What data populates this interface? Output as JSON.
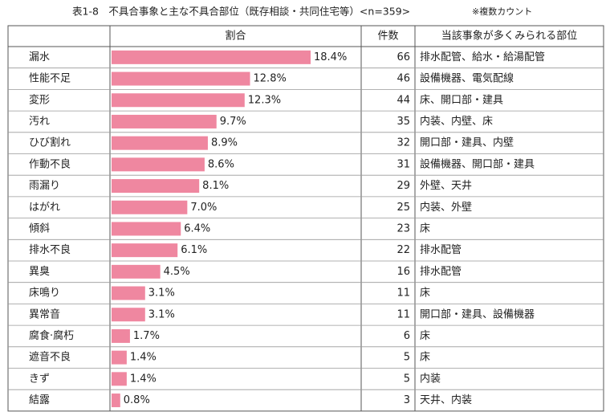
{
  "chart_data": {
    "type": "bar",
    "orientation": "horizontal",
    "title": "表1-8　不具合事象と主な不具合部位（既存相談・共同住宅等）<n=359>",
    "note": "※複数カウント",
    "headers": [
      "割合",
      "件数",
      "当該事象が多くみられる部位"
    ],
    "color": "#ef87a0",
    "categories": [
      "漏水",
      "性能不足",
      "変形",
      "汚れ",
      "ひび割れ",
      "作動不良",
      "雨漏り",
      "はがれ",
      "傾斜",
      "排水不良",
      "異臭",
      "床鳴り",
      "異常音",
      "腐食·腐朽",
      "遮音不良",
      "きず",
      "結露"
    ],
    "values": [
      18.4,
      12.8,
      12.3,
      9.7,
      8.9,
      8.6,
      8.1,
      7.0,
      6.4,
      6.1,
      4.5,
      3.1,
      3.1,
      1.7,
      1.4,
      1.4,
      0.8
    ],
    "value_labels": [
      "18.4%",
      "12.8%",
      "12.3%",
      "9.7%",
      "8.9%",
      "8.6%",
      "8.1%",
      "7.0%",
      "6.4%",
      "6.1%",
      "4.5%",
      "3.1%",
      "3.1%",
      "1.7%",
      "1.4%",
      "1.4%",
      "0.8%"
    ],
    "counts": [
      66,
      46,
      44,
      35,
      32,
      31,
      29,
      25,
      23,
      22,
      16,
      11,
      11,
      6,
      5,
      5,
      3
    ],
    "parts": [
      "排水配管、給水・給湯配管",
      "設備機器、電気配線",
      "床、開口部・建具",
      "内装、内壁、床",
      "開口部・建具、内壁",
      "設備機器、開口部・建具",
      "外壁、天井",
      "内装、外壁",
      "床",
      "排水配管",
      "排水配管",
      "床",
      "開口部・建具、設備機器",
      "床",
      "床",
      "内装",
      "天井、内装"
    ]
  }
}
